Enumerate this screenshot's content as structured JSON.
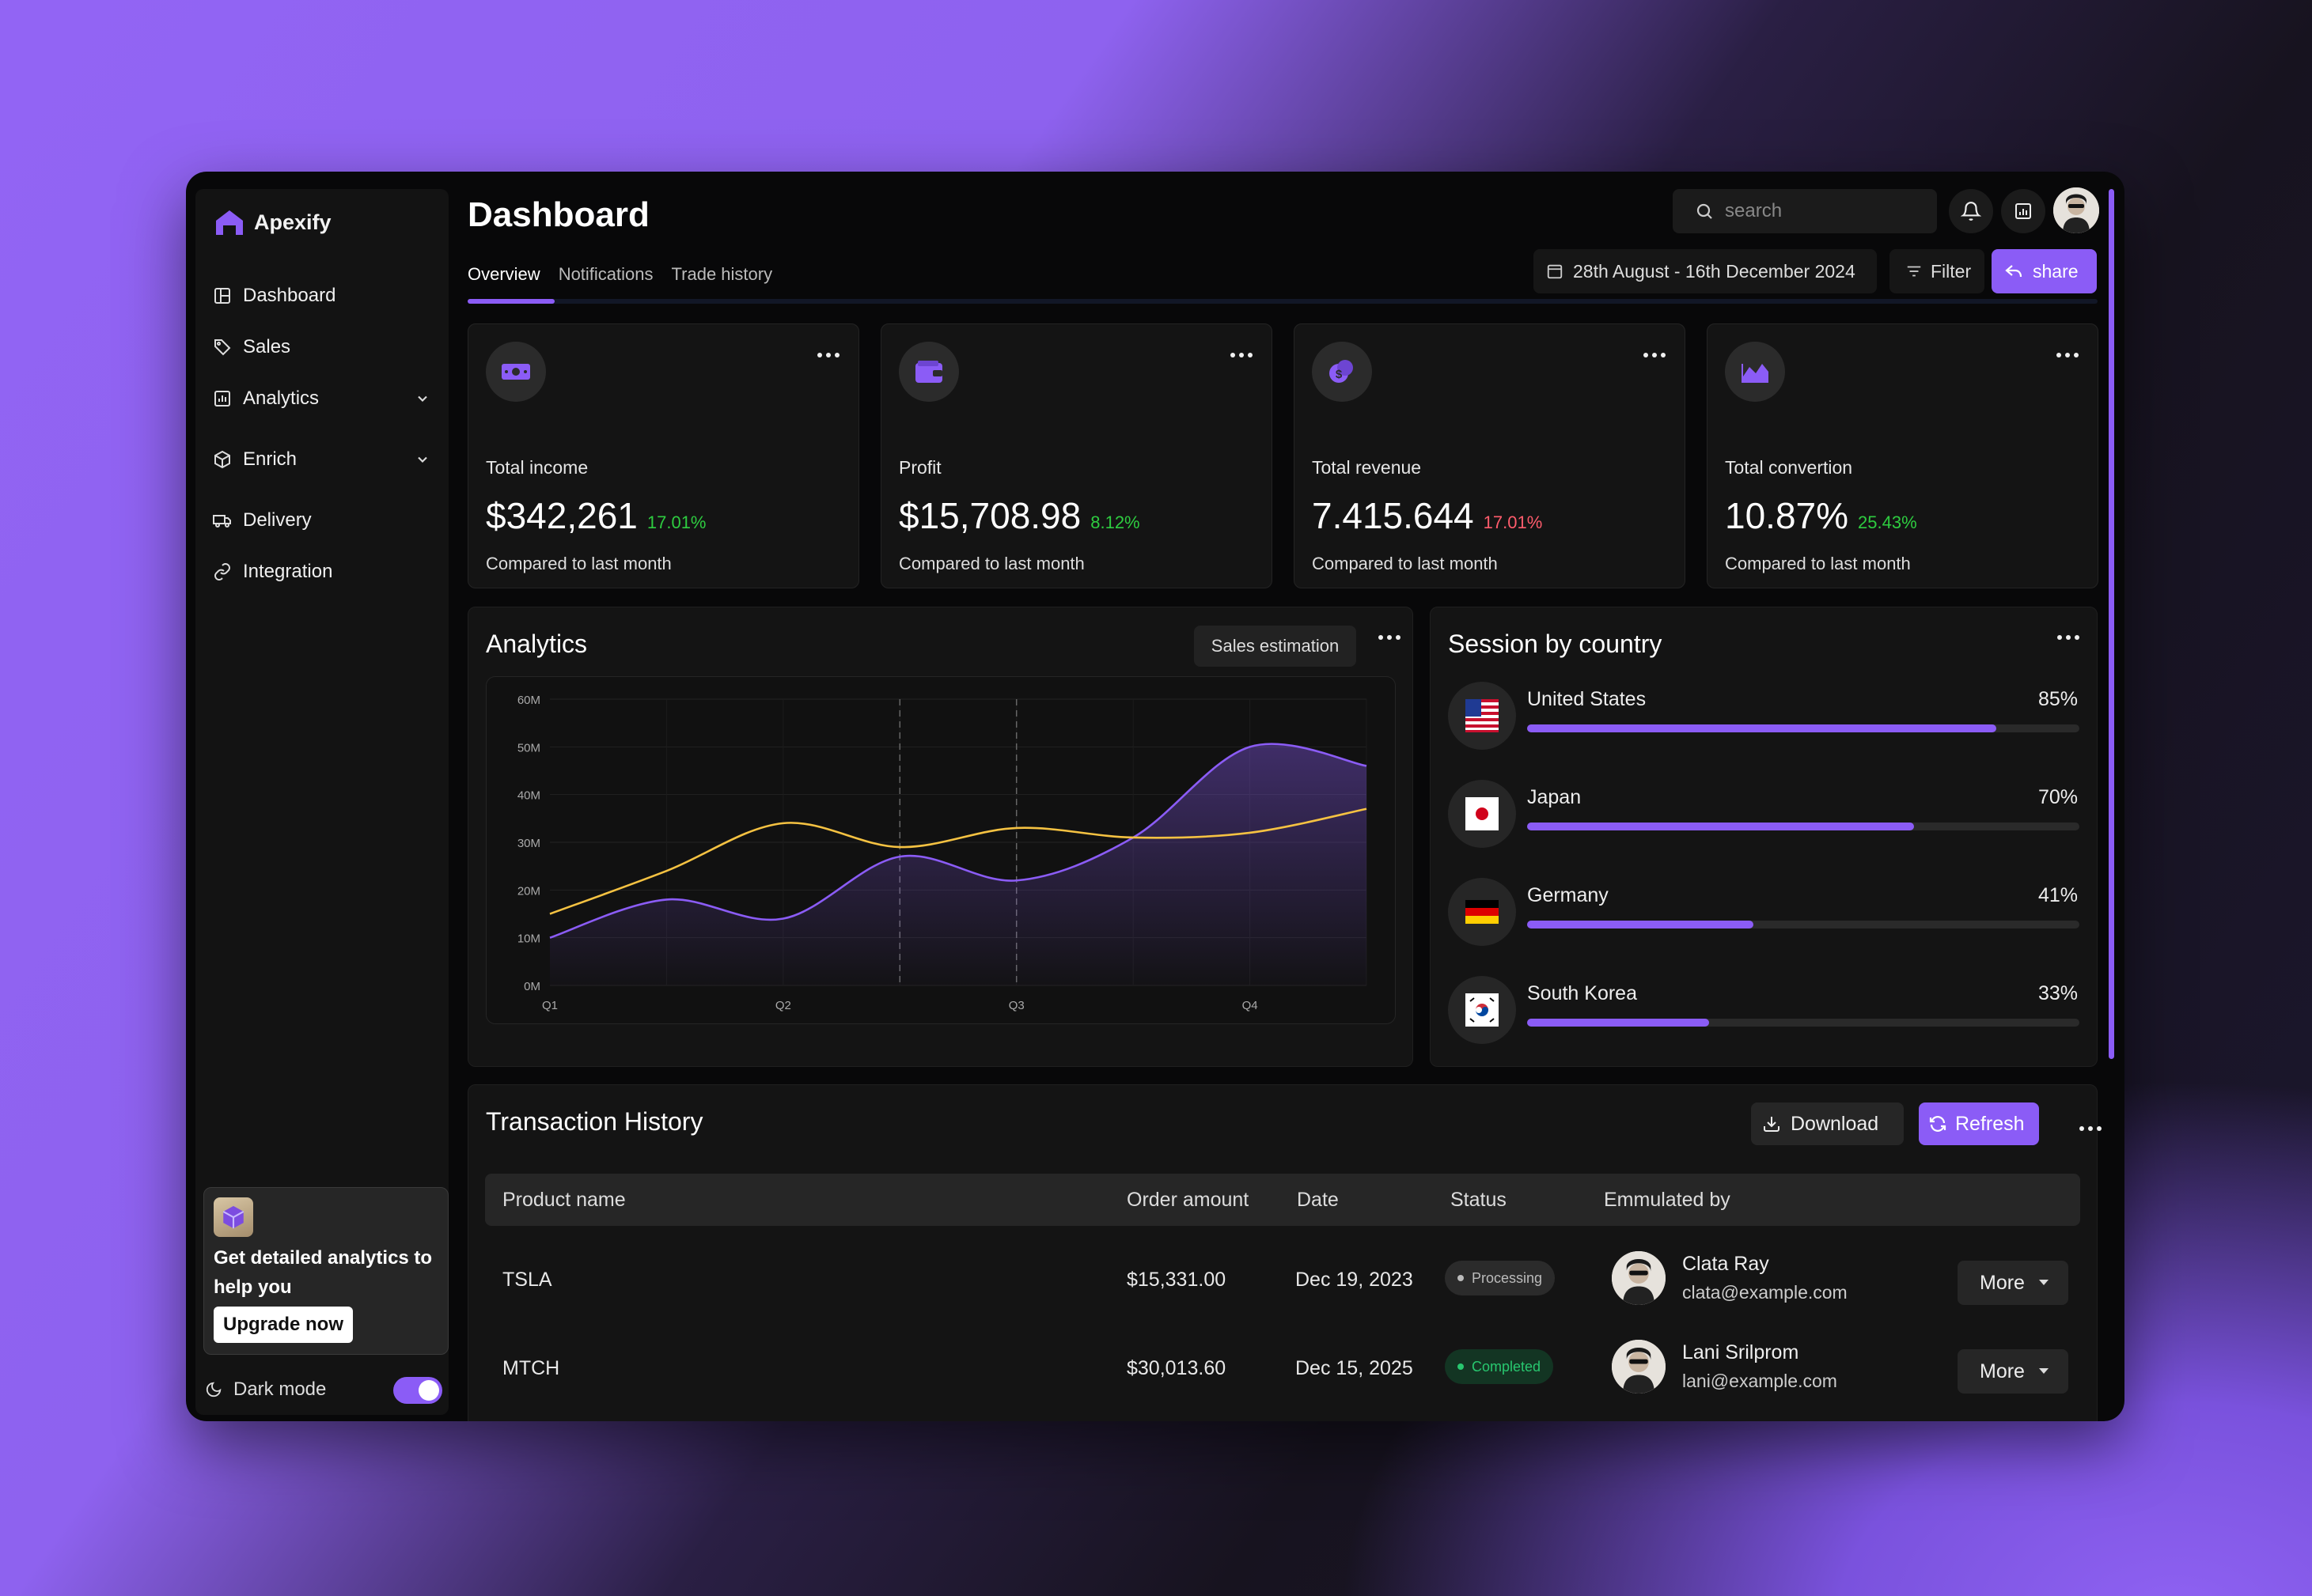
{
  "app": {
    "name": "Apexify"
  },
  "sidebar": {
    "items": [
      {
        "label": "Dashboard"
      },
      {
        "label": "Sales"
      },
      {
        "label": "Analytics"
      },
      {
        "label": "Enrich"
      },
      {
        "label": "Delivery"
      },
      {
        "label": "Integration"
      }
    ],
    "promo": {
      "text": "Get detailed analytics to help you",
      "button": "Upgrade now"
    },
    "dark_mode": {
      "label": "Dark mode",
      "enabled": true
    }
  },
  "header": {
    "title": "Dashboard",
    "tabs": [
      "Overview",
      "Notifications",
      "Trade history"
    ],
    "active_tab": "Overview",
    "search_placeholder": "search",
    "date_range": "28th August - 16th December 2024",
    "filter_label": "Filter",
    "share_label": "share"
  },
  "cards": [
    {
      "label": "Total income",
      "value": "$342,261",
      "change": "17.01%",
      "change_color": "#2ecc40",
      "sub": "Compared to last month"
    },
    {
      "label": "Profit",
      "value": "$15,708.98",
      "change": "8.12%",
      "change_color": "#2ecc40",
      "sub": "Compared to last month"
    },
    {
      "label": "Total revenue",
      "value": "7.415.644",
      "change": "17.01%",
      "change_color": "#ff5c6c",
      "sub": "Compared to last month"
    },
    {
      "label": "Total convertion",
      "value": "10.87%",
      "change": "25.43%",
      "change_color": "#2ecc40",
      "sub": "Compared to last month"
    }
  ],
  "analytics": {
    "title": "Analytics",
    "estimation_label": "Sales estimation"
  },
  "chart_data": {
    "type": "line",
    "title": "Analytics",
    "x": [
      "Q1",
      "",
      "Q2",
      "",
      "Q3",
      "",
      "Q4",
      ""
    ],
    "xlabels": [
      "Q1",
      "Q2",
      "Q3",
      "Q4"
    ],
    "yticks": [
      "0M",
      "10M",
      "20M",
      "30M",
      "40M",
      "50M",
      "60M"
    ],
    "ylim": [
      0,
      60
    ],
    "series": [
      {
        "name": "purple",
        "color": "#8b5cf6",
        "values": [
          10,
          18,
          14,
          27,
          22,
          31,
          50,
          46
        ]
      },
      {
        "name": "yellow",
        "color": "#f5c242",
        "values": [
          15,
          24,
          34,
          29,
          33,
          31,
          32,
          37
        ]
      }
    ]
  },
  "sessions": {
    "title": "Session by country",
    "countries": [
      {
        "name": "United States",
        "pct_label": "85%",
        "pct": 85
      },
      {
        "name": "Japan",
        "pct_label": "70%",
        "pct": 70
      },
      {
        "name": "Germany",
        "pct_label": "41%",
        "pct": 41
      },
      {
        "name": "South Korea",
        "pct_label": "33%",
        "pct": 33
      }
    ]
  },
  "transactions": {
    "title": "Transaction History",
    "download_label": "Download",
    "refresh_label": "Refresh",
    "columns": [
      "Product name",
      "Order amount",
      "Date",
      "Status",
      "Emmulated by"
    ],
    "rows": [
      {
        "product": "TSLA",
        "amount": "$15,331.00",
        "date": "Dec 19, 2023",
        "status": "Processing",
        "name": "Clata Ray",
        "email": "clata@example.com",
        "action": "More"
      },
      {
        "product": "MTCH",
        "amount": "$30,013.60",
        "date": "Dec 15, 2025",
        "status": "Completed",
        "name": "Lani Srilprom",
        "email": "lani@example.com",
        "action": "More"
      }
    ]
  }
}
